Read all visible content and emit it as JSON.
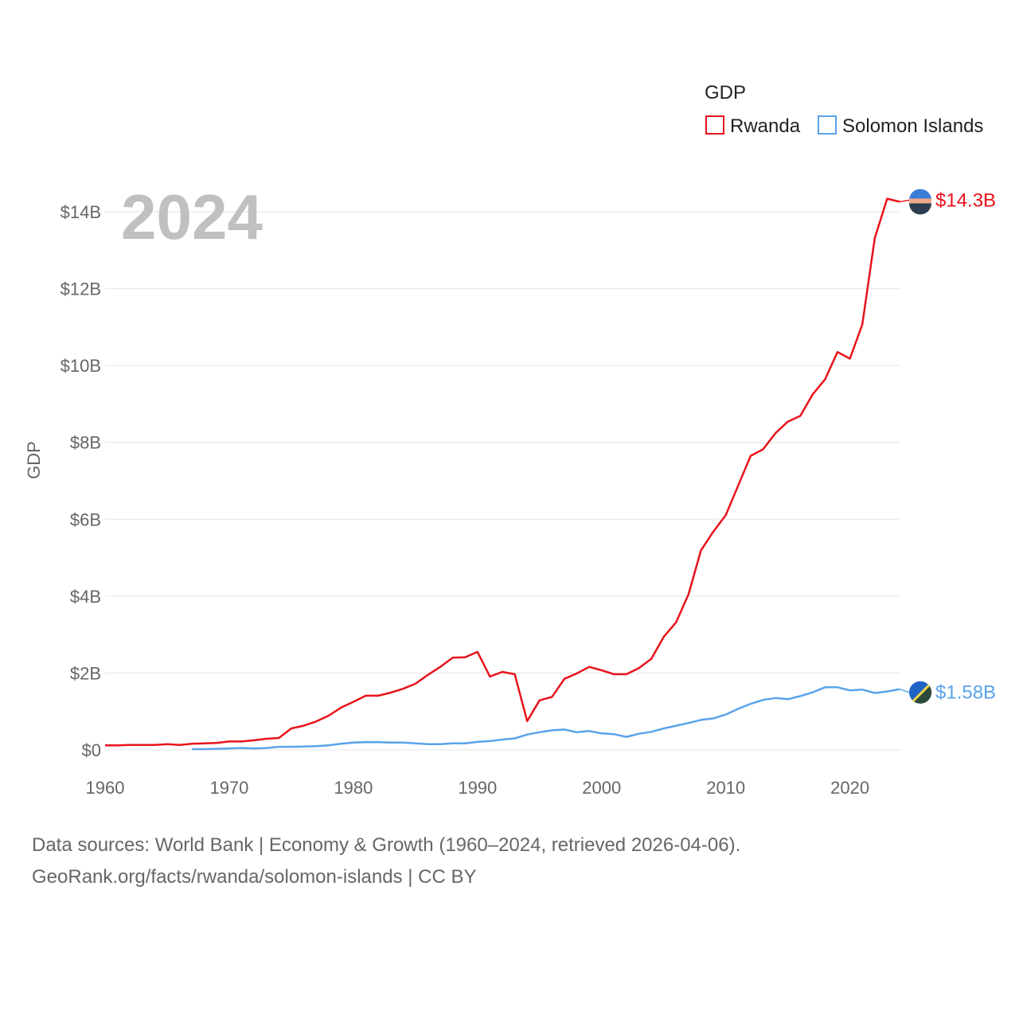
{
  "chart_data": {
    "type": "line",
    "year_overlay": "2024",
    "ylabel": "GDP",
    "xlabel": "",
    "xlim": [
      1960,
      2024
    ],
    "ylim": [
      0,
      14
    ],
    "x_ticks": [
      1960,
      1970,
      1980,
      1990,
      2000,
      2010,
      2020
    ],
    "x_tick_labels": [
      "1960",
      "1970",
      "1980",
      "1990",
      "2000",
      "2010",
      "2020"
    ],
    "y_ticks": [
      0,
      2,
      4,
      6,
      8,
      10,
      12,
      14
    ],
    "y_tick_labels": [
      "$0",
      "$2B",
      "$4B",
      "$6B",
      "$8B",
      "$10B",
      "$12B",
      "$14B"
    ],
    "legend": {
      "title": "GDP",
      "position": "top-right"
    },
    "series": [
      {
        "name": "Rwanda",
        "color": "#e8131b",
        "end_label": "$14.3B",
        "flag_icon": "rwanda-flag-icon",
        "x": [
          1960,
          1961,
          1962,
          1963,
          1964,
          1965,
          1966,
          1967,
          1968,
          1969,
          1970,
          1971,
          1972,
          1973,
          1974,
          1975,
          1976,
          1977,
          1978,
          1979,
          1980,
          1981,
          1982,
          1983,
          1984,
          1985,
          1986,
          1987,
          1988,
          1989,
          1990,
          1991,
          1992,
          1993,
          1994,
          1995,
          1996,
          1997,
          1998,
          1999,
          2000,
          2001,
          2002,
          2003,
          2004,
          2005,
          2006,
          2007,
          2008,
          2009,
          2010,
          2011,
          2012,
          2013,
          2014,
          2015,
          2016,
          2017,
          2018,
          2019,
          2020,
          2021,
          2022,
          2023,
          2024
        ],
        "values": [
          0.12,
          0.12,
          0.13,
          0.13,
          0.13,
          0.15,
          0.13,
          0.16,
          0.17,
          0.18,
          0.22,
          0.22,
          0.25,
          0.29,
          0.31,
          0.56,
          0.63,
          0.74,
          0.89,
          1.1,
          1.25,
          1.41,
          1.41,
          1.49,
          1.59,
          1.72,
          1.95,
          2.16,
          2.4,
          2.41,
          2.55,
          1.91,
          2.03,
          1.97,
          0.75,
          1.29,
          1.38,
          1.85,
          1.99,
          2.16,
          2.07,
          1.97,
          1.97,
          2.13,
          2.37,
          2.94,
          3.32,
          4.05,
          5.19,
          5.68,
          6.11,
          6.88,
          7.65,
          7.82,
          8.24,
          8.54,
          8.69,
          9.25,
          9.64,
          10.35,
          10.18,
          11.07,
          13.31,
          14.34,
          14.26
        ]
      },
      {
        "name": "Solomon Islands",
        "color": "#5aa3ea",
        "end_label": "$1.58B",
        "flag_icon": "solomon-islands-flag-icon",
        "x": [
          1967,
          1968,
          1969,
          1970,
          1971,
          1972,
          1973,
          1974,
          1975,
          1976,
          1977,
          1978,
          1979,
          1980,
          1981,
          1982,
          1983,
          1984,
          1985,
          1986,
          1987,
          1988,
          1989,
          1990,
          1991,
          1992,
          1993,
          1994,
          1995,
          1996,
          1997,
          1998,
          1999,
          2000,
          2001,
          2002,
          2003,
          2004,
          2005,
          2006,
          2007,
          2008,
          2009,
          2010,
          2011,
          2012,
          2013,
          2014,
          2015,
          2016,
          2017,
          2018,
          2019,
          2020,
          2021,
          2022,
          2023,
          2024
        ],
        "values": [
          0.02,
          0.02,
          0.03,
          0.04,
          0.05,
          0.04,
          0.05,
          0.08,
          0.08,
          0.09,
          0.1,
          0.12,
          0.16,
          0.19,
          0.2,
          0.2,
          0.19,
          0.19,
          0.17,
          0.15,
          0.15,
          0.17,
          0.17,
          0.21,
          0.23,
          0.27,
          0.3,
          0.4,
          0.46,
          0.51,
          0.53,
          0.46,
          0.49,
          0.43,
          0.41,
          0.34,
          0.42,
          0.47,
          0.56,
          0.63,
          0.7,
          0.78,
          0.82,
          0.92,
          1.07,
          1.2,
          1.3,
          1.35,
          1.32,
          1.4,
          1.5,
          1.63,
          1.63,
          1.55,
          1.57,
          1.48,
          1.52,
          1.58
        ]
      }
    ]
  },
  "source": {
    "line1": "Data sources: World Bank | Economy & Growth (1960–2024, retrieved 2026-04-06).",
    "line2": "GeoRank.org/facts/rwanda/solomon-islands | CC BY"
  }
}
